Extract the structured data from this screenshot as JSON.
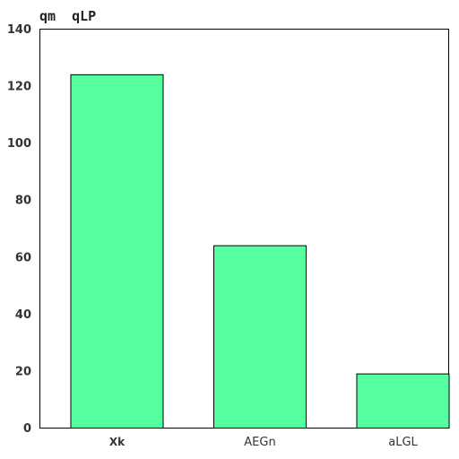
{
  "chart_data": {
    "type": "bar",
    "title": "qm  qLP",
    "categories": [
      "Xk",
      "AEGn",
      "aLGL"
    ],
    "values": [
      124,
      64,
      19
    ],
    "ylim": [
      0,
      140
    ],
    "yticks": [
      0,
      20,
      40,
      60,
      80,
      100,
      120,
      140
    ],
    "bar_color": "#55ff9f",
    "edge_color": "#000000",
    "grid": false
  }
}
